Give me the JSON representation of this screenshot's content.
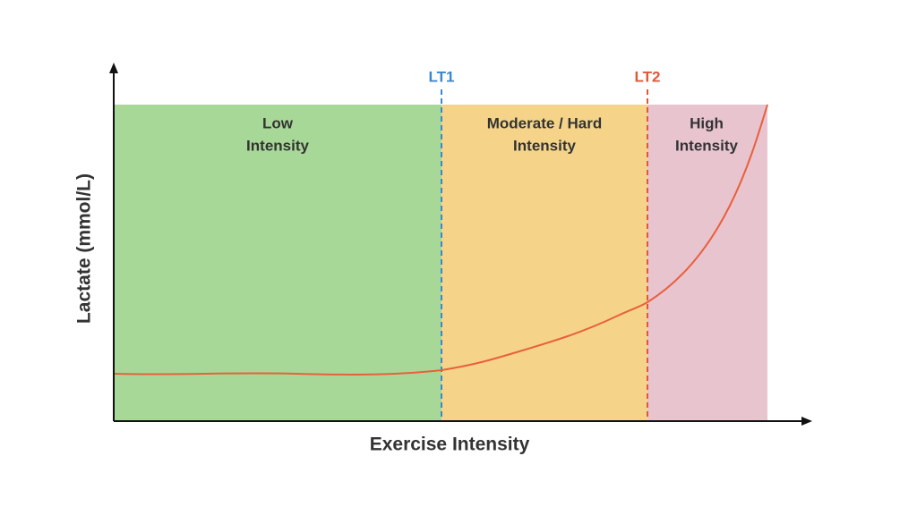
{
  "axes": {
    "x_label": "Exercise Intensity",
    "y_label": "Lactate (mmol/L)"
  },
  "thresholds": [
    {
      "label": "LT1"
    },
    {
      "label": "LT2"
    }
  ],
  "zones": [
    {
      "label": [
        "Low",
        "Intensity"
      ]
    },
    {
      "label": [
        "Moderate / Hard",
        "Intensity"
      ]
    },
    {
      "label": [
        "High",
        "Intensity"
      ]
    }
  ]
}
